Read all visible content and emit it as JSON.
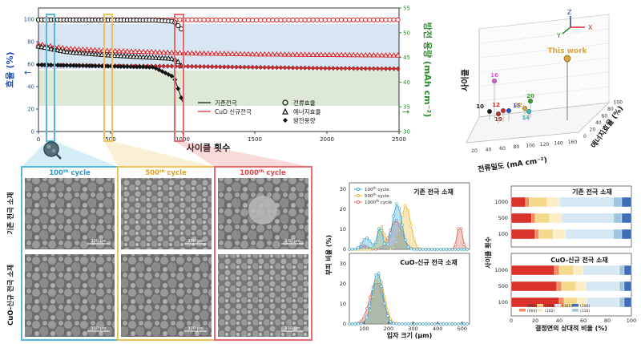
{
  "top_chart": {
    "type": "line",
    "ylabel_left": "효율 (%)",
    "ylabel_right": "방전 용량 (mAh cm⁻²)",
    "xlabel": "사이클 횟수",
    "x_ticks": [
      "0",
      "500",
      "1000",
      "1500",
      "2000",
      "2500"
    ],
    "y_left_ticks": [
      "0",
      "20",
      "40",
      "60",
      "80",
      "100"
    ],
    "y_right_ticks": [
      "30",
      "35",
      "40",
      "45",
      "50",
      "55"
    ],
    "xlim": [
      0,
      2500
    ],
    "ylim_left": [
      0,
      110
    ],
    "ylim_right": [
      30,
      55
    ],
    "legend": {
      "header_left": "",
      "line_baseline": "기존전극",
      "line_cuo": "CuO 신규전극",
      "marker_ce": "전류효율",
      "marker_ee": "에너지효율",
      "marker_dc": "방전용량"
    },
    "colors": {
      "baseline": "#111111",
      "cuo": "#d6262b",
      "left_axis": "#1c4fb4",
      "right_axis": "#2e8a2e",
      "band_blue": "#d8e6f4",
      "band_green": "#dde9d6"
    },
    "series": [
      {
        "name": "CuO 전류효율",
        "x": [
          0,
          200,
          500,
          800,
          1000,
          1500,
          2000,
          2500
        ],
        "y": [
          99.5,
          99.5,
          99.5,
          99.4,
          99.5,
          99.3,
          99.4,
          99.5
        ]
      },
      {
        "name": "기존 전류효율",
        "x": [
          0,
          200,
          500,
          800,
          940,
          970,
          1000
        ],
        "y": [
          99.5,
          99.4,
          99.3,
          99.2,
          98.0,
          94.0,
          90.0
        ]
      },
      {
        "name": "CuO 에너지효율",
        "x": [
          0,
          200,
          500,
          800,
          1000,
          1500,
          2000,
          2500
        ],
        "y": [
          78,
          74,
          72,
          71,
          70,
          69,
          68.5,
          68
        ]
      },
      {
        "name": "기존 에너지효율",
        "x": [
          0,
          200,
          500,
          800,
          940,
          970,
          1000
        ],
        "y": [
          76,
          71,
          68,
          66,
          65,
          62,
          57
        ]
      },
      {
        "name": "CuO 방전용량",
        "x": [
          0,
          500,
          1000,
          1500,
          2000,
          2500
        ],
        "y": [
          43.5,
          43.3,
          43.2,
          43.0,
          42.8,
          42.7
        ]
      },
      {
        "name": "기존 방전용량",
        "x": [
          0,
          500,
          800,
          940,
          970,
          1000
        ],
        "y": [
          43.5,
          43.2,
          43.0,
          41.0,
          38.5,
          36.0
        ]
      }
    ],
    "markers": {
      "left_arrow": "←",
      "right_arrow": "→"
    }
  },
  "scatter3d": {
    "title": "",
    "xlabel": "전류밀도 (mA cm⁻²)",
    "ylabel": "에너지효율 (%)",
    "zlabel": "사이클",
    "axis_letters": {
      "x": "X",
      "y": "Y",
      "z": "Z"
    },
    "x_ticks": [
      "20",
      "40",
      "60",
      "80",
      "100",
      "120",
      "140",
      "160"
    ],
    "y_ticks": [
      "0",
      "20",
      "40",
      "60",
      "80",
      "100"
    ],
    "this_work_label": "This work",
    "points": [
      {
        "label": "16",
        "color": "#d65ec8"
      },
      {
        "label": "10",
        "color": "#1f1f1f"
      },
      {
        "label": "12",
        "color": "#d6262b"
      },
      {
        "label": "15",
        "color": "#2f4fc8"
      },
      {
        "label": "19",
        "color": "#b03030"
      },
      {
        "label": "22",
        "color": "#d6a63a"
      },
      {
        "label": "20",
        "color": "#35a02c"
      },
      {
        "label": "14",
        "color": "#36c0b8"
      }
    ]
  },
  "sem": {
    "cycle_labels": [
      {
        "num": "100",
        "sup": "th",
        "word": " cycle"
      },
      {
        "num": "500",
        "sup": "th",
        "word": " cycle"
      },
      {
        "num": "1000",
        "sup": "th",
        "word": " cycle"
      }
    ],
    "row_labels": [
      "기존 전극 소재",
      "CuO-신규 전극 소재"
    ],
    "scale_bar": "300 μm",
    "frame_colors": [
      "#55b9de",
      "#f0c35a",
      "#e86a6a"
    ]
  },
  "dist": {
    "ylabel": "부피 비율 (%)",
    "xlabel": "입자 크기 (μm)",
    "x_ticks": [
      "100",
      "200",
      "300",
      "400",
      "500"
    ],
    "y_ticks": [
      "0",
      "10",
      "20",
      "30"
    ],
    "panel_top_title": "기존 전극 소재",
    "panel_bottom_title": "CuO-신규 전극 소재",
    "legend": [
      {
        "num": "100",
        "sup": "th",
        "word": " cycle",
        "color": "#3aa6d8"
      },
      {
        "num": "500",
        "sup": "th",
        "word": " cycle",
        "color": "#e6b93a"
      },
      {
        "num": "1000",
        "sup": "th",
        "word": " cycle",
        "color": "#d9665b"
      }
    ]
  },
  "facet": {
    "ylabel": "사이클 횟수",
    "xlabel": "결정면의 상대적 비율 (%)",
    "x_ticks": [
      "0",
      "20",
      "40",
      "60",
      "80",
      "100"
    ],
    "y_ticks": [
      "1000",
      "500",
      "100"
    ],
    "panel_top_title": "기존 전극 소재",
    "panel_bottom_title": "CuO-신규 전극 소재",
    "legend": [
      "(002)",
      "(101)",
      "(103)",
      "(102)",
      "(100)",
      "(004)",
      "(110)"
    ],
    "colors": [
      "#d9322b",
      "#f28c5a",
      "#f5d98a",
      "#fbeec7",
      "#d5e8f3",
      "#9fc5df",
      "#3d6fb6"
    ],
    "top_bars": [
      {
        "cycle": "1000",
        "values": [
          12,
          3,
          15,
          10,
          45,
          7,
          8
        ]
      },
      {
        "cycle": "500",
        "values": [
          17,
          3,
          12,
          10,
          43,
          7,
          8
        ]
      },
      {
        "cycle": "100",
        "values": [
          20,
          3,
          12,
          10,
          40,
          7,
          8
        ]
      }
    ],
    "bottom_bars": [
      {
        "cycle": "1000",
        "values": [
          36,
          4,
          12,
          8,
          30,
          4,
          6
        ]
      },
      {
        "cycle": "500",
        "values": [
          38,
          4,
          12,
          8,
          28,
          4,
          6
        ]
      },
      {
        "cycle": "100",
        "values": [
          40,
          4,
          11,
          8,
          27,
          4,
          6
        ]
      }
    ]
  }
}
